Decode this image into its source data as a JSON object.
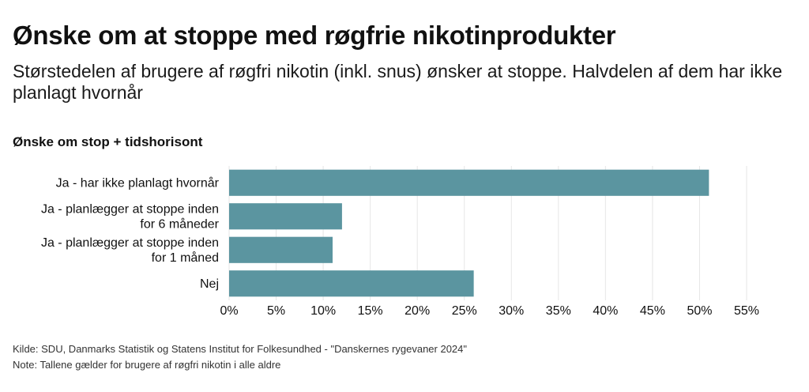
{
  "title": "Ønske om at stoppe med røgfrie nikotinprodukter",
  "subtitle": "Størstedelen af brugere af røgfri nikotin (inkl. snus) ønsker at stoppe. Halvdelen af dem har ikke planlagt hvornår",
  "chart_data": {
    "type": "bar",
    "orientation": "horizontal",
    "title": "Ønske om stop + tidshorisont",
    "categories": [
      [
        "Ja - har ikke planlagt hvornår"
      ],
      [
        "Ja - planlægger at stoppe inden",
        "for 6 måneder"
      ],
      [
        "Ja - planlægger at stoppe inden",
        "for 1 måned"
      ],
      [
        "Nej"
      ]
    ],
    "values": [
      51,
      12,
      11,
      26
    ],
    "xlim": [
      0,
      55
    ],
    "xticks": [
      "0%",
      "5%",
      "10%",
      "15%",
      "20%",
      "25%",
      "30%",
      "35%",
      "40%",
      "45%",
      "50%",
      "55%"
    ],
    "tick_step": 5,
    "grid": true,
    "bar_color": "#5b95a0"
  },
  "footer": {
    "source": "Kilde: SDU, Danmarks Statistik og Statens Institut for Folkesundhed - \"Danskernes rygevaner 2024\"",
    "note": "Note: Tallene gælder for brugere af røgfri nikotin i alle aldre"
  }
}
